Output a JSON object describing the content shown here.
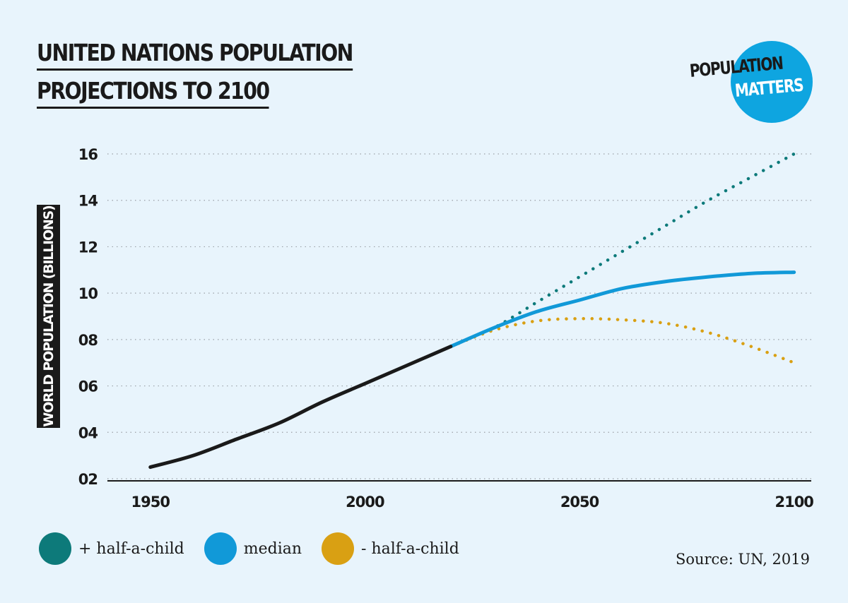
{
  "title_lines": [
    "UNITED NATIONS POPULATION",
    "PROJECTIONS TO 2100"
  ],
  "logo": {
    "line1": "POPULATION",
    "line2": "MATTERS",
    "color": "#0ea5e0"
  },
  "source": "Source: UN, 2019",
  "colors": {
    "historical": "#1a1a1a",
    "high": "#0d7a7a",
    "median": "#1199d8",
    "low": "#d9a013",
    "grid": "#9aa0a6"
  },
  "chart_data": {
    "type": "line",
    "ylabel": "WORLD POPULATION (BILLIONS)",
    "xlabel": "",
    "xlim": [
      1940,
      2104
    ],
    "ylim": [
      2,
      16
    ],
    "x_ticks": [
      1950,
      2000,
      2050,
      2100
    ],
    "y_ticks": [
      {
        "value": 2,
        "label": "02"
      },
      {
        "value": 4,
        "label": "04"
      },
      {
        "value": 6,
        "label": "06"
      },
      {
        "value": 8,
        "label": "08"
      },
      {
        "value": 10,
        "label": "10"
      },
      {
        "value": 12,
        "label": "12"
      },
      {
        "value": 14,
        "label": "14"
      },
      {
        "value": 16,
        "label": "16"
      }
    ],
    "grid": "horizontal dotted",
    "series": [
      {
        "key": "historical",
        "color": "#1a1a1a",
        "style": "solid",
        "points": [
          [
            1950,
            2.5
          ],
          [
            1960,
            3.0
          ],
          [
            1970,
            3.7
          ],
          [
            1980,
            4.4
          ],
          [
            1990,
            5.3
          ],
          [
            2000,
            6.1
          ],
          [
            2010,
            6.9
          ],
          [
            2020,
            7.7
          ]
        ]
      },
      {
        "name": "+ half-a-child",
        "color": "#0d7a7a",
        "style": "dotted",
        "points": [
          [
            2020,
            7.7
          ],
          [
            2030,
            8.5
          ],
          [
            2040,
            9.6
          ],
          [
            2050,
            10.7
          ],
          [
            2060,
            11.8
          ],
          [
            2070,
            12.9
          ],
          [
            2080,
            14.0
          ],
          [
            2090,
            15.0
          ],
          [
            2100,
            16.0
          ]
        ]
      },
      {
        "name": "median",
        "color": "#1199d8",
        "style": "solid",
        "points": [
          [
            2020,
            7.7
          ],
          [
            2030,
            8.5
          ],
          [
            2040,
            9.2
          ],
          [
            2050,
            9.7
          ],
          [
            2060,
            10.2
          ],
          [
            2070,
            10.5
          ],
          [
            2080,
            10.7
          ],
          [
            2090,
            10.85
          ],
          [
            2100,
            10.9
          ]
        ]
      },
      {
        "name": "- half-a-child",
        "color": "#d9a013",
        "style": "dotted",
        "points": [
          [
            2020,
            7.7
          ],
          [
            2030,
            8.4
          ],
          [
            2040,
            8.8
          ],
          [
            2050,
            8.9
          ],
          [
            2060,
            8.85
          ],
          [
            2070,
            8.7
          ],
          [
            2080,
            8.3
          ],
          [
            2090,
            7.7
          ],
          [
            2100,
            7.0
          ]
        ]
      }
    ]
  },
  "legend": [
    {
      "label": "+ half-a-child",
      "color": "#0d7a7a"
    },
    {
      "label": "median",
      "color": "#1199d8"
    },
    {
      "label": "- half-a-child",
      "color": "#d9a013"
    }
  ]
}
